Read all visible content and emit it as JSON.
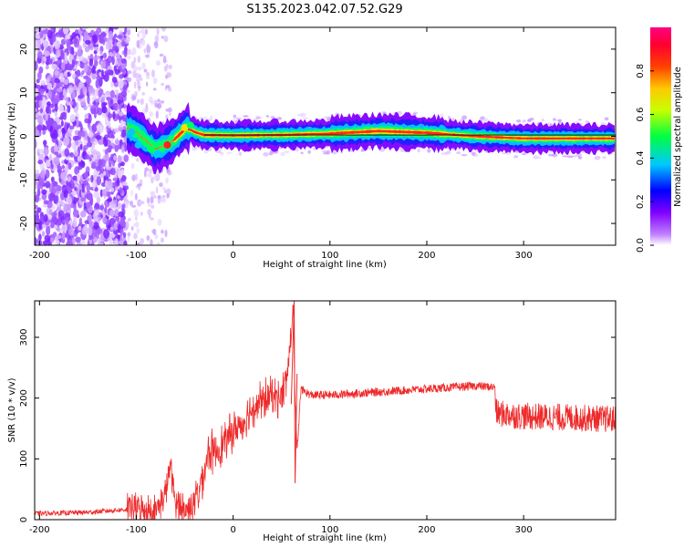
{
  "figure": {
    "title": "S135.2023.042.07.52.G29"
  },
  "chart_data": [
    {
      "type": "heatmap",
      "title": "S135.2023.042.07.52.G29",
      "xlabel": "Height of straight line (km)",
      "ylabel": "Frequency (Hz)",
      "xlim": [
        -205,
        395
      ],
      "ylim": [
        -25,
        25
      ],
      "xticks": [
        -200,
        -100,
        0,
        100,
        200,
        300
      ],
      "yticks": [
        -20,
        -10,
        0,
        10,
        20
      ],
      "colorbar": {
        "label": "Normalized spectral amplitude",
        "range": [
          0,
          1
        ],
        "ticks": [
          0.0,
          0.2,
          0.4,
          0.6,
          0.8
        ],
        "colormap": [
          "#ffffff",
          "#a000ff",
          "#0000ff",
          "#00c8ff",
          "#00ff00",
          "#ffff00",
          "#ff8000",
          "#ff0000",
          "#ff0080"
        ]
      },
      "centerline_hz": [
        [
          -110,
          2
        ],
        [
          -100,
          1
        ],
        [
          -90,
          -1
        ],
        [
          -80,
          -3
        ],
        [
          -70,
          -2
        ],
        [
          -62,
          -1
        ],
        [
          -55,
          0.5
        ],
        [
          -48,
          2
        ],
        [
          -40,
          1
        ],
        [
          -30,
          0.3
        ],
        [
          0,
          0.2
        ],
        [
          50,
          0.3
        ],
        [
          100,
          0.6
        ],
        [
          150,
          1.2
        ],
        [
          200,
          0.8
        ],
        [
          250,
          0
        ],
        [
          300,
          -0.5
        ],
        [
          395,
          -0.5
        ]
      ]
    },
    {
      "type": "line",
      "xlabel": "Height of straight line (km)",
      "ylabel": "SNR (10 * v/v)",
      "xlim": [
        -205,
        395
      ],
      "ylim": [
        0,
        360
      ],
      "xticks": [
        -200,
        -100,
        0,
        100,
        200,
        300
      ],
      "yticks": [
        0,
        100,
        200,
        300
      ],
      "color": "#ee2a2a",
      "series": [
        {
          "x": [
            -205,
            -150,
            -100,
            -80,
            -70,
            -65,
            -60,
            -50,
            -45,
            -40,
            -35,
            -30,
            -25,
            -20,
            -10,
            0,
            10,
            20,
            30,
            40,
            50,
            55,
            60,
            62,
            64,
            66,
            70,
            80,
            100,
            150,
            200,
            250,
            270,
            272,
            300,
            350,
            395
          ],
          "y": [
            10,
            12,
            18,
            15,
            40,
            90,
            30,
            15,
            20,
            30,
            50,
            80,
            115,
            110,
            125,
            145,
            160,
            185,
            195,
            205,
            200,
            230,
            300,
            360,
            200,
            110,
            215,
            205,
            205,
            210,
            215,
            220,
            218,
            175,
            170,
            168,
            165
          ]
        }
      ]
    }
  ]
}
